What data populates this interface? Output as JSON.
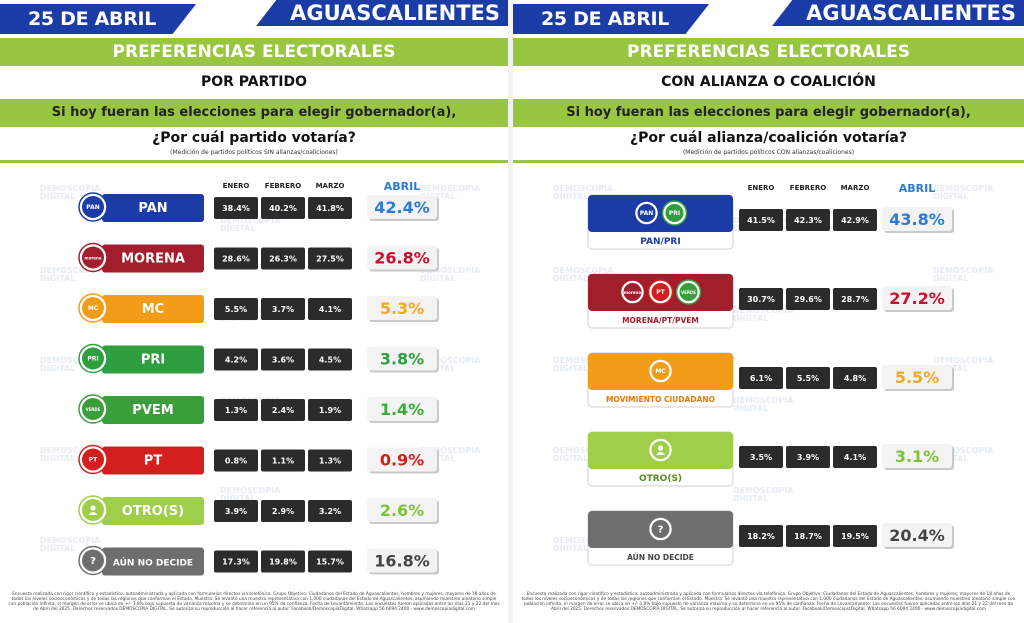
{
  "left": {
    "date": "25 DE ABRIL",
    "state": "AGUASCALIENTES",
    "banner": "PREFERENCIAS ELECTORALES",
    "subtitle": "POR PARTIDO",
    "prompt": "Si hoy fueran las elecciones para elegir gobernador(a),",
    "question": "¿Por cuál partido votaría?",
    "note": "(Medición de partidos políticos SIN alianzas/coaliciones)",
    "footer": "Encuesta realizada con rigor científico y estadístico, autoadministrada y aplicada con formularios directos vía telefónica. Grupo Objetivo: Ciudadanos del Estado de Aguascalientes, hombres y mujeres, mayores de 18 años de todos los niveles socioeconómicos y de todas las regiones que conforman el Estado. Muestra: Se levantó una muestra representativa con 1,000 ciudadanos del Estado de Aguascalientes, asumiendo muestreo aleatorio simple con población infinita, el margen de error se ubica en +/- 3.8% bajo supuesto de varianza máxima y se determina en un 95% de confianza. Fecha de Levantamiento: Las encuestas fueron aplicadas entre los días 21 y 22 del mes de Abril del 2025. Derechos reservados DEMOSCOPIA DIGITAL. Se autoriza su reproducción al hacer referencia al autor. Facebook/DemoscopiaDigital, Whatsapp 56 6094 2400 - www.demoscopiadigital.com"
  },
  "right": {
    "date": "25 DE ABRIL",
    "state": "AGUASCALIENTES",
    "banner": "PREFERENCIAS ELECTORALES",
    "subtitle": "CON ALIANZA O COALICIÓN",
    "prompt": "Si hoy fueran las elecciones para elegir gobernador(a),",
    "question": "¿Por cuál alianza/coalición votaría?",
    "note": "(Medición de partidos políticos CON alianzas/coaliciones)",
    "footer": "Encuesta realizada con rigor científico y estadístico, autoadministrada y aplicada con formularios directos vía telefónica. Grupo Objetivo: Ciudadanos del Estado de Aguascalientes, hombres y mujeres, mayores de 18 años de todos los niveles socioeconómicos y de todas las regiones que conforman el Estado. Muestra: Se levantó una muestra representativa con 1,000 ciudadanos del Estado de Aguascalientes, asumiendo muestreo aleatorio simple con población infinita, el margen de error se ubica en +/- 3.8% bajo supuesto de varianza máxima y se determina en un 95% de confianza. Fecha de Levantamiento: Las encuestas fueron aplicadas entre los días 21 y 22 del mes de Abril del 2025. Derechos reservados DEMOSCOPIA DIGITAL. Se autoriza su reproducción al hacer referencia al autor. Facebook/DemoscopiaDigital, Whatsapp 56 6094 2400 - www.demoscopiadigital.com"
  },
  "watermark": [
    "DEMOSCOPIA",
    "DIGITAL"
  ],
  "chart_data": [
    {
      "type": "table",
      "columns": [
        "ENERO",
        "FEBRERO",
        "MARZO",
        "ABRIL"
      ],
      "rows": [
        {
          "label": "PAN",
          "color": "#1b3ba6",
          "text_color": "#ffffff",
          "april_color": "#2b7bd8",
          "logos": [
            "PAN"
          ],
          "values": [
            "38.4%",
            "40.2%",
            "41.8%",
            "42.4%"
          ]
        },
        {
          "label": "MORENA",
          "color": "#a31d2c",
          "text_color": "#ffffff",
          "april_color": "#c8102e",
          "logos": [
            "morena"
          ],
          "values": [
            "28.6%",
            "26.3%",
            "27.5%",
            "26.8%"
          ]
        },
        {
          "label": "MC",
          "color": "#f39c1a",
          "text_color": "#ffffff",
          "april_color": "#f5a623",
          "logos": [
            "MC"
          ],
          "values": [
            "5.5%",
            "3.7%",
            "4.1%",
            "5.3%"
          ]
        },
        {
          "label": "PRI",
          "color": "#2e9e3f",
          "text_color": "#ffffff",
          "april_color": "#2ea043",
          "logos": [
            "PRI"
          ],
          "values": [
            "4.2%",
            "3.6%",
            "4.5%",
            "3.8%"
          ]
        },
        {
          "label": "PVEM",
          "color": "#3a9e3a",
          "text_color": "#ffffff",
          "april_color": "#3aaa3a",
          "logos": [
            "VERDE"
          ],
          "values": [
            "1.3%",
            "2.4%",
            "1.9%",
            "1.4%"
          ]
        },
        {
          "label": "PT",
          "color": "#d41f1f",
          "text_color": "#ffffff",
          "april_color": "#d41f1f",
          "logos": [
            "PT"
          ],
          "values": [
            "0.8%",
            "1.1%",
            "1.3%",
            "0.9%"
          ]
        },
        {
          "label": "OTRO(S)",
          "color": "#9fcf4a",
          "text_color": "#ffffff",
          "april_color": "#7fc23a",
          "logos": [
            "person"
          ],
          "values": [
            "3.9%",
            "2.9%",
            "3.2%",
            "2.6%"
          ]
        },
        {
          "label": "AÚN NO DECIDE",
          "color": "#6e6e6e",
          "text_color": "#ffffff",
          "april_color": "#444444",
          "logos": [
            "?"
          ],
          "values": [
            "17.3%",
            "19.8%",
            "15.7%",
            "16.8%"
          ]
        }
      ]
    },
    {
      "type": "table",
      "columns": [
        "ENERO",
        "FEBRERO",
        "MARZO",
        "ABRIL"
      ],
      "rows": [
        {
          "label": "PAN/PRI",
          "color": "#1b3ba6",
          "text_color": "#1b3ba6",
          "april_color": "#2b7bd8",
          "logos": [
            "PAN",
            "PRI"
          ],
          "values": [
            "41.5%",
            "42.3%",
            "42.9%",
            "43.8%"
          ]
        },
        {
          "label": "MORENA/PT/PVEM",
          "color": "#a31d2c",
          "text_color": "#a31d2c",
          "april_color": "#c8102e",
          "logos": [
            "morena",
            "PT",
            "VERDE"
          ],
          "values": [
            "30.7%",
            "29.6%",
            "28.7%",
            "27.2%"
          ]
        },
        {
          "label": "MOVIMIENTO CIUDADANO",
          "color": "#f39c1a",
          "text_color": "#e07b00",
          "april_color": "#f5a623",
          "logos": [
            "MC"
          ],
          "values": [
            "6.1%",
            "5.5%",
            "4.8%",
            "5.5%"
          ]
        },
        {
          "label": "OTRO(S)",
          "color": "#9fcf4a",
          "text_color": "#5a8a20",
          "april_color": "#7fc23a",
          "logos": [
            "person"
          ],
          "values": [
            "3.5%",
            "3.9%",
            "4.1%",
            "3.1%"
          ]
        },
        {
          "label": "AÚN NO DECIDE",
          "color": "#6e6e6e",
          "text_color": "#444444",
          "april_color": "#444444",
          "logos": [
            "?"
          ],
          "values": [
            "18.2%",
            "18.7%",
            "19.5%",
            "20.4%"
          ]
        }
      ]
    }
  ]
}
